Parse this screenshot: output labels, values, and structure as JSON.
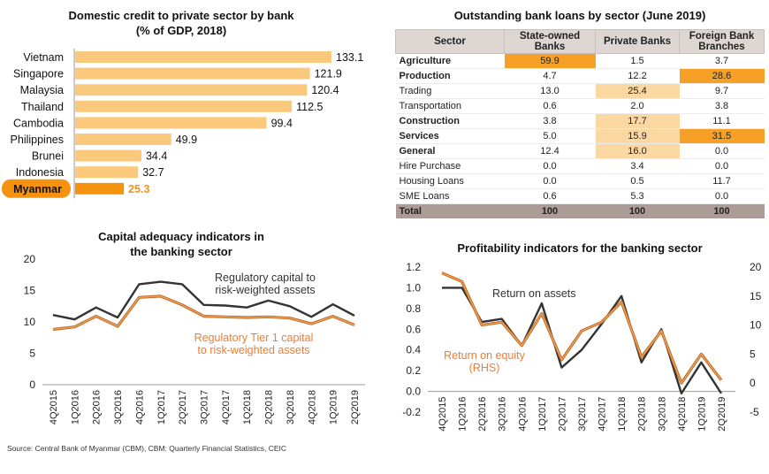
{
  "chart_data": [
    {
      "type": "bar",
      "orientation": "horizontal",
      "title": "Domestic credit to private sector by bank\n(% of GDP, 2018)",
      "categories": [
        "Vietnam",
        "Singapore",
        "Malaysia",
        "Thailand",
        "Cambodia",
        "Philippines",
        "Brunei",
        "Indonesia",
        "Myanmar"
      ],
      "values": [
        133.1,
        121.9,
        120.4,
        112.5,
        99.4,
        49.9,
        34.4,
        32.7,
        25.3
      ],
      "value_labels": [
        "133.1",
        "121.9",
        "120.4",
        "112.5",
        "99.4",
        "49.9",
        "34.4",
        "32.7",
        "25.3"
      ],
      "highlight": "Myanmar",
      "colors": {
        "bar": "#fbc97c",
        "highlight": "#f5930f"
      },
      "xlim": [
        0,
        140
      ]
    },
    {
      "type": "table",
      "title": "Outstanding bank loans by sector (June 2019)",
      "columns": [
        "Sector",
        "State-owned Banks",
        "Private Banks",
        "Foreign Bank Branches"
      ],
      "rows": [
        {
          "sector": "Agriculture",
          "bold": true,
          "values": [
            "59.9",
            "1.5",
            "3.7"
          ],
          "hl": [
            "strong",
            "",
            ""
          ]
        },
        {
          "sector": "Production",
          "bold": true,
          "values": [
            "4.7",
            "12.2",
            "28.6"
          ],
          "hl": [
            "",
            "",
            "strong"
          ]
        },
        {
          "sector": "Trading",
          "bold": false,
          "values": [
            "13.0",
            "25.4",
            "9.7"
          ],
          "hl": [
            "",
            "light",
            ""
          ]
        },
        {
          "sector": "Transportation",
          "bold": false,
          "values": [
            "0.6",
            "2.0",
            "3.8"
          ],
          "hl": [
            "",
            "",
            ""
          ]
        },
        {
          "sector": "Construction",
          "bold": true,
          "values": [
            "3.8",
            "17.7",
            "11.1"
          ],
          "hl": [
            "",
            "light",
            ""
          ]
        },
        {
          "sector": "Services",
          "bold": true,
          "values": [
            "5.0",
            "15.9",
            "31.5"
          ],
          "hl": [
            "",
            "light",
            "strong"
          ]
        },
        {
          "sector": "General",
          "bold": true,
          "values": [
            "12.4",
            "16.0",
            "0.0"
          ],
          "hl": [
            "",
            "light",
            ""
          ]
        },
        {
          "sector": "Hire Purchase",
          "bold": false,
          "values": [
            "0.0",
            "3.4",
            "0.0"
          ],
          "hl": [
            "",
            "",
            ""
          ]
        },
        {
          "sector": "Housing Loans",
          "bold": false,
          "values": [
            "0.0",
            "0.5",
            "11.7"
          ],
          "hl": [
            "",
            "",
            ""
          ]
        },
        {
          "sector": "SME Loans",
          "bold": false,
          "values": [
            "0.6",
            "5.3",
            "0.0"
          ],
          "hl": [
            "",
            "",
            ""
          ]
        },
        {
          "sector": "Total",
          "bold": true,
          "total": true,
          "values": [
            "100",
            "100",
            "100"
          ],
          "hl": [
            "",
            "",
            ""
          ]
        }
      ],
      "colors": {
        "strong": "#f7a028",
        "light": "#fbd8a2",
        "header": "#ddd6d3",
        "total": "#ab9c97"
      }
    },
    {
      "type": "line",
      "title": "Capital adequacy indicators in\nthe banking sector",
      "x": [
        "4Q2015",
        "1Q2016",
        "2Q2016",
        "3Q2016",
        "4Q2016",
        "1Q2017",
        "2Q2017",
        "3Q2017",
        "4Q2017",
        "1Q2018",
        "2Q2018",
        "3Q2018",
        "4Q2018",
        "1Q2019",
        "2Q2019"
      ],
      "series": [
        {
          "name": "Regulatory capital to\nrisk-weighted assets",
          "color": "#333333",
          "values": [
            11.1,
            10.4,
            12.3,
            10.7,
            16.0,
            16.4,
            16.0,
            12.7,
            12.6,
            12.3,
            13.4,
            12.5,
            10.8,
            12.8,
            11.0
          ]
        },
        {
          "name": "Regulatory Tier 1 capital\nto risk-weighted assets",
          "color": "#ed7d31",
          "values": [
            8.8,
            9.2,
            10.9,
            9.3,
            13.9,
            14.1,
            12.7,
            10.9,
            10.8,
            10.7,
            10.8,
            10.6,
            9.7,
            10.9,
            9.5
          ]
        }
      ],
      "yticks": [
        "20",
        "15",
        "10",
        "5",
        "0"
      ],
      "ylim": [
        0,
        20
      ]
    },
    {
      "type": "line",
      "title": "Profitability indicators for the banking sector",
      "x": [
        "4Q2015",
        "1Q2016",
        "2Q2016",
        "3Q2016",
        "4Q2016",
        "1Q2017",
        "2Q2017",
        "3Q2017",
        "4Q2017",
        "1Q2018",
        "2Q2018",
        "3Q2018",
        "4Q2018",
        "1Q2019",
        "2Q2019"
      ],
      "series": [
        {
          "name": "Return on assets",
          "axis": "left",
          "color": "#333333",
          "values": [
            1.0,
            1.0,
            0.67,
            0.7,
            0.44,
            0.85,
            0.23,
            0.4,
            0.65,
            0.92,
            0.28,
            0.6,
            -0.02,
            0.28,
            -0.02
          ]
        },
        {
          "name": "Return on equity\n(RHS)",
          "axis": "right",
          "color": "#ed7d31",
          "values": [
            19.0,
            17.5,
            10.0,
            10.5,
            6.5,
            12.0,
            4.0,
            9.0,
            10.5,
            14.0,
            4.5,
            9.0,
            0.0,
            5.0,
            0.5
          ]
        }
      ],
      "yticks_left": [
        "1.2",
        "1.0",
        "0.8",
        "0.6",
        "0.4",
        "0.2",
        "0.0",
        "-0.2"
      ],
      "yticks_right": [
        "20",
        "15",
        "10",
        "5",
        "0",
        "-5"
      ],
      "ylim_left": [
        -0.2,
        1.2
      ],
      "ylim_right": [
        -5,
        20
      ]
    }
  ],
  "source": "Source: Central Bank of Myanmar (CBM), CBM: Quarterly Financial Statistics, CEIC"
}
